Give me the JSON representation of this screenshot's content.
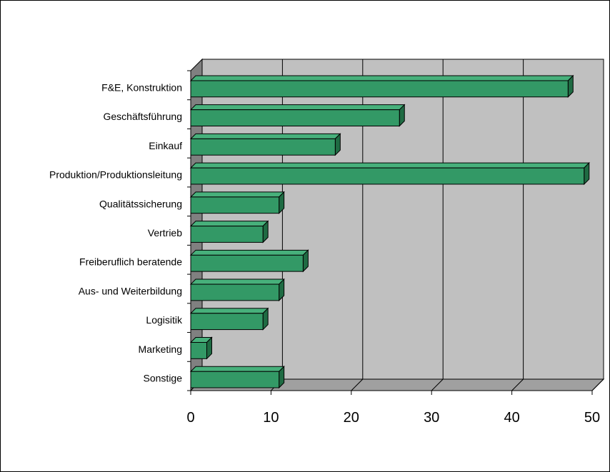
{
  "chart_data": {
    "type": "bar",
    "orientation": "horizontal",
    "categories": [
      "F&E, Konstruktion",
      "Geschäftsführung",
      "Einkauf",
      "Produktion/Produktionsleitung",
      "Qualitätssicherung",
      "Vertrieb",
      "Freiberuflich beratende",
      "Aus- und Weiterbildung",
      "Logisitik",
      "Marketing",
      "Sonstige"
    ],
    "values": [
      47,
      26,
      18,
      49,
      11,
      9,
      14,
      11,
      9,
      2,
      11
    ],
    "xlim": [
      0,
      50
    ],
    "xticks": [
      0,
      10,
      20,
      30,
      40,
      50
    ],
    "grid": true,
    "style": "3d",
    "colors": {
      "bar_front": "#339966",
      "bar_top": "#47b07b",
      "bar_side": "#1f6b43",
      "plot_wall": "#c0c0c0",
      "plot_side_wall": "#808080",
      "grid": "#000000"
    }
  }
}
